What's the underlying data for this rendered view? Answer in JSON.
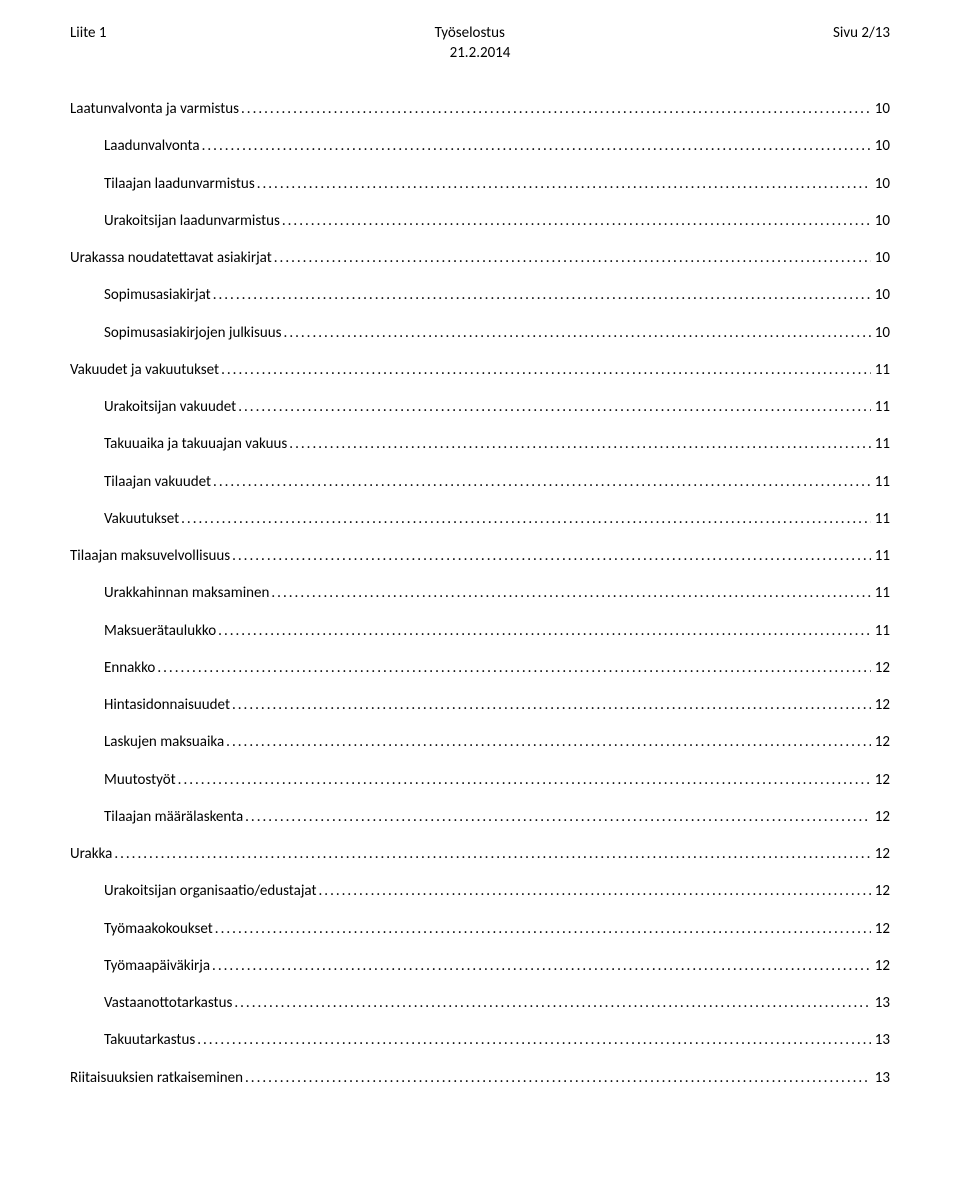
{
  "header": {
    "left": "Liite 1",
    "center_top": "Työselostus",
    "center_bottom": "21.2.2014",
    "right": "Sivu 2/13"
  },
  "toc": [
    {
      "level": 0,
      "title": "Laatunvalvonta ja varmistus",
      "page": "10"
    },
    {
      "level": 1,
      "title": "Laadunvalvonta",
      "page": "10"
    },
    {
      "level": 1,
      "title": "Tilaajan laadunvarmistus",
      "page": "10"
    },
    {
      "level": 1,
      "title": "Urakoitsijan laadunvarmistus",
      "page": "10"
    },
    {
      "level": 0,
      "title": "Urakassa noudatettavat asiakirjat",
      "page": "10"
    },
    {
      "level": 1,
      "title": "Sopimusasiakirjat",
      "page": "10"
    },
    {
      "level": 1,
      "title": "Sopimusasiakirjojen julkisuus",
      "page": "10"
    },
    {
      "level": 0,
      "title": "Vakuudet ja vakuutukset",
      "page": "11"
    },
    {
      "level": 1,
      "title": "Urakoitsijan vakuudet",
      "page": "11"
    },
    {
      "level": 1,
      "title": "Takuuaika ja takuuajan vakuus",
      "page": "11"
    },
    {
      "level": 1,
      "title": "Tilaajan vakuudet",
      "page": "11"
    },
    {
      "level": 1,
      "title": "Vakuutukset",
      "page": "11"
    },
    {
      "level": 0,
      "title": "Tilaajan maksuvelvollisuus",
      "page": "11"
    },
    {
      "level": 1,
      "title": "Urakkahinnan maksaminen",
      "page": "11"
    },
    {
      "level": 1,
      "title": "Maksuerätaulukko",
      "page": "11"
    },
    {
      "level": 1,
      "title": "Ennakko",
      "page": "12"
    },
    {
      "level": 1,
      "title": "Hintasidonnaisuudet",
      "page": "12"
    },
    {
      "level": 1,
      "title": "Laskujen maksuaika",
      "page": "12"
    },
    {
      "level": 1,
      "title": "Muutostyöt",
      "page": "12"
    },
    {
      "level": 1,
      "title": "Tilaajan määrälaskenta",
      "page": "12"
    },
    {
      "level": 0,
      "title": "Urakka",
      "page": "12"
    },
    {
      "level": 1,
      "title": "Urakoitsijan organisaatio/edustajat",
      "page": "12"
    },
    {
      "level": 1,
      "title": "Työmaakokoukset",
      "page": "12"
    },
    {
      "level": 1,
      "title": "Työmaapäiväkirja",
      "page": "12"
    },
    {
      "level": 1,
      "title": "Vastaanottotarkastus",
      "page": "13"
    },
    {
      "level": 1,
      "title": "Takuutarkastus",
      "page": "13"
    },
    {
      "level": 0,
      "title": "Riitaisuuksien ratkaiseminen",
      "page": "13"
    }
  ]
}
